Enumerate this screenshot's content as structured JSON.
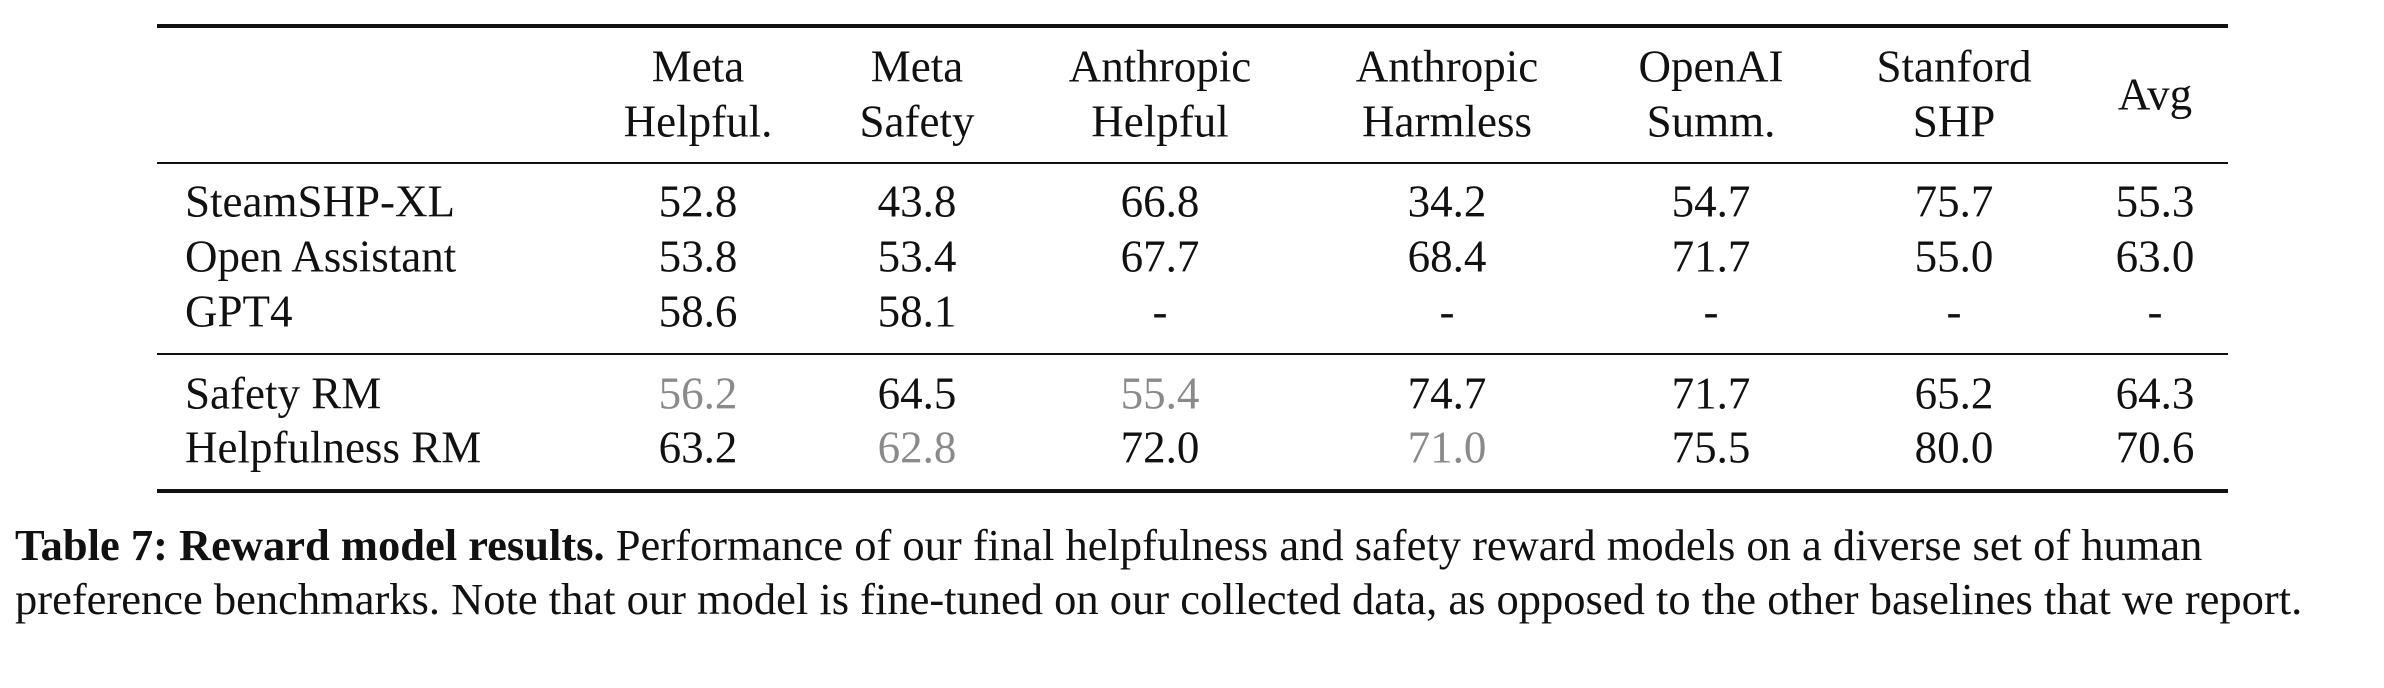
{
  "table": {
    "header": [
      [
        "Meta",
        "Helpful."
      ],
      [
        "Meta",
        "Safety"
      ],
      [
        "Anthropic",
        "Helpful"
      ],
      [
        "Anthropic",
        "Harmless"
      ],
      [
        "OpenAI",
        "Summ."
      ],
      [
        "Stanford",
        "SHP"
      ],
      [
        "Avg"
      ]
    ],
    "groups": [
      [
        [
          "SteamSHP-XL",
          "52.8",
          "43.8",
          "66.8",
          "34.2",
          "54.7",
          "75.7",
          "55.3"
        ],
        [
          "Open Assistant",
          "53.8",
          "53.4",
          "67.7",
          "68.4",
          "71.7",
          "55.0",
          "63.0"
        ],
        [
          "GPT4",
          "58.6",
          "58.1",
          "-",
          "-",
          "-",
          "-",
          "-"
        ]
      ],
      [
        [
          "Safety RM",
          {
            "text": "56.2",
            "color": "#8a8a8a"
          },
          "64.5",
          {
            "text": "55.4",
            "color": "#8a8a8a"
          },
          "74.7",
          "71.7",
          "65.2",
          "64.3"
        ],
        [
          "Helpfulness RM",
          "63.2",
          {
            "text": "62.8",
            "color": "#8a8a8a"
          },
          "72.0",
          {
            "text": "71.0",
            "color": "#8a8a8a"
          },
          "75.5",
          "80.0",
          "70.6"
        ]
      ]
    ]
  },
  "caption": {
    "label": "Table 7: Reward model results.",
    "text": "Performance of our final helpfulness and safety reward models on a diverse set of human preference benchmarks. Note that our model is fine-tuned on our collected data, as opposed to the other baselines that we report."
  }
}
